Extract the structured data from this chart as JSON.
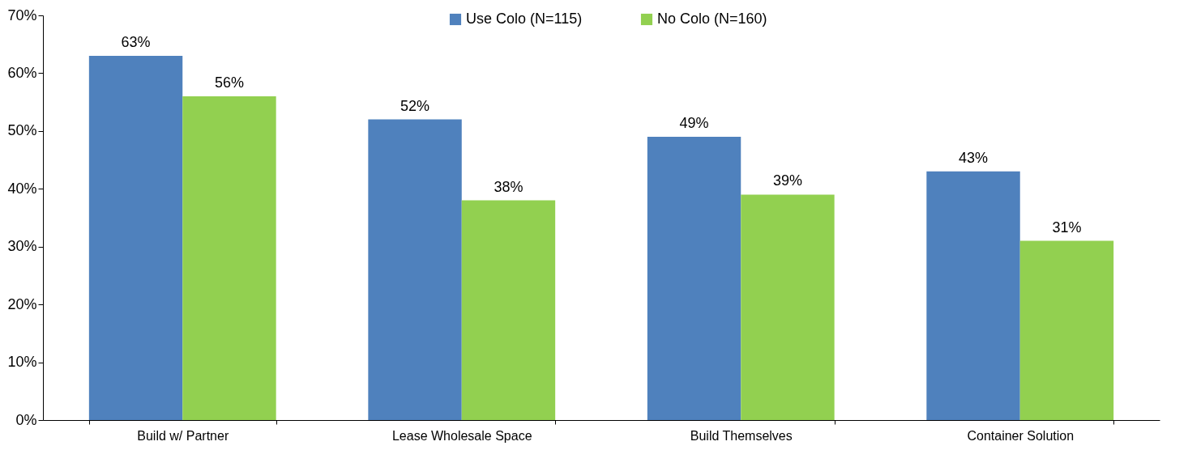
{
  "chart_data": {
    "type": "bar",
    "categories": [
      "Build w/ Partner",
      "Lease Wholesale Space",
      "Build Themselves",
      "Container Solution"
    ],
    "series": [
      {
        "name": "Use Colo (N=115)",
        "color": "#4f81bd",
        "values": [
          63,
          52,
          49,
          43
        ],
        "value_labels": [
          "63%",
          "52%",
          "49%",
          "43%"
        ]
      },
      {
        "name": "No Colo (N=160)",
        "color": "#92d050",
        "values": [
          56,
          38,
          39,
          31
        ],
        "value_labels": [
          "56%",
          "38%",
          "39%",
          "31%"
        ]
      }
    ],
    "ylim": [
      0,
      70
    ],
    "yticks": [
      {
        "value": 0,
        "label": "0%"
      },
      {
        "value": 10,
        "label": "10%"
      },
      {
        "value": 20,
        "label": "20%"
      },
      {
        "value": 30,
        "label": "30%"
      },
      {
        "value": 40,
        "label": "40%"
      },
      {
        "value": 50,
        "label": "50%"
      },
      {
        "value": 60,
        "label": "60%"
      },
      {
        "value": 70,
        "label": "70%"
      }
    ],
    "grid": false,
    "legend": "top"
  }
}
